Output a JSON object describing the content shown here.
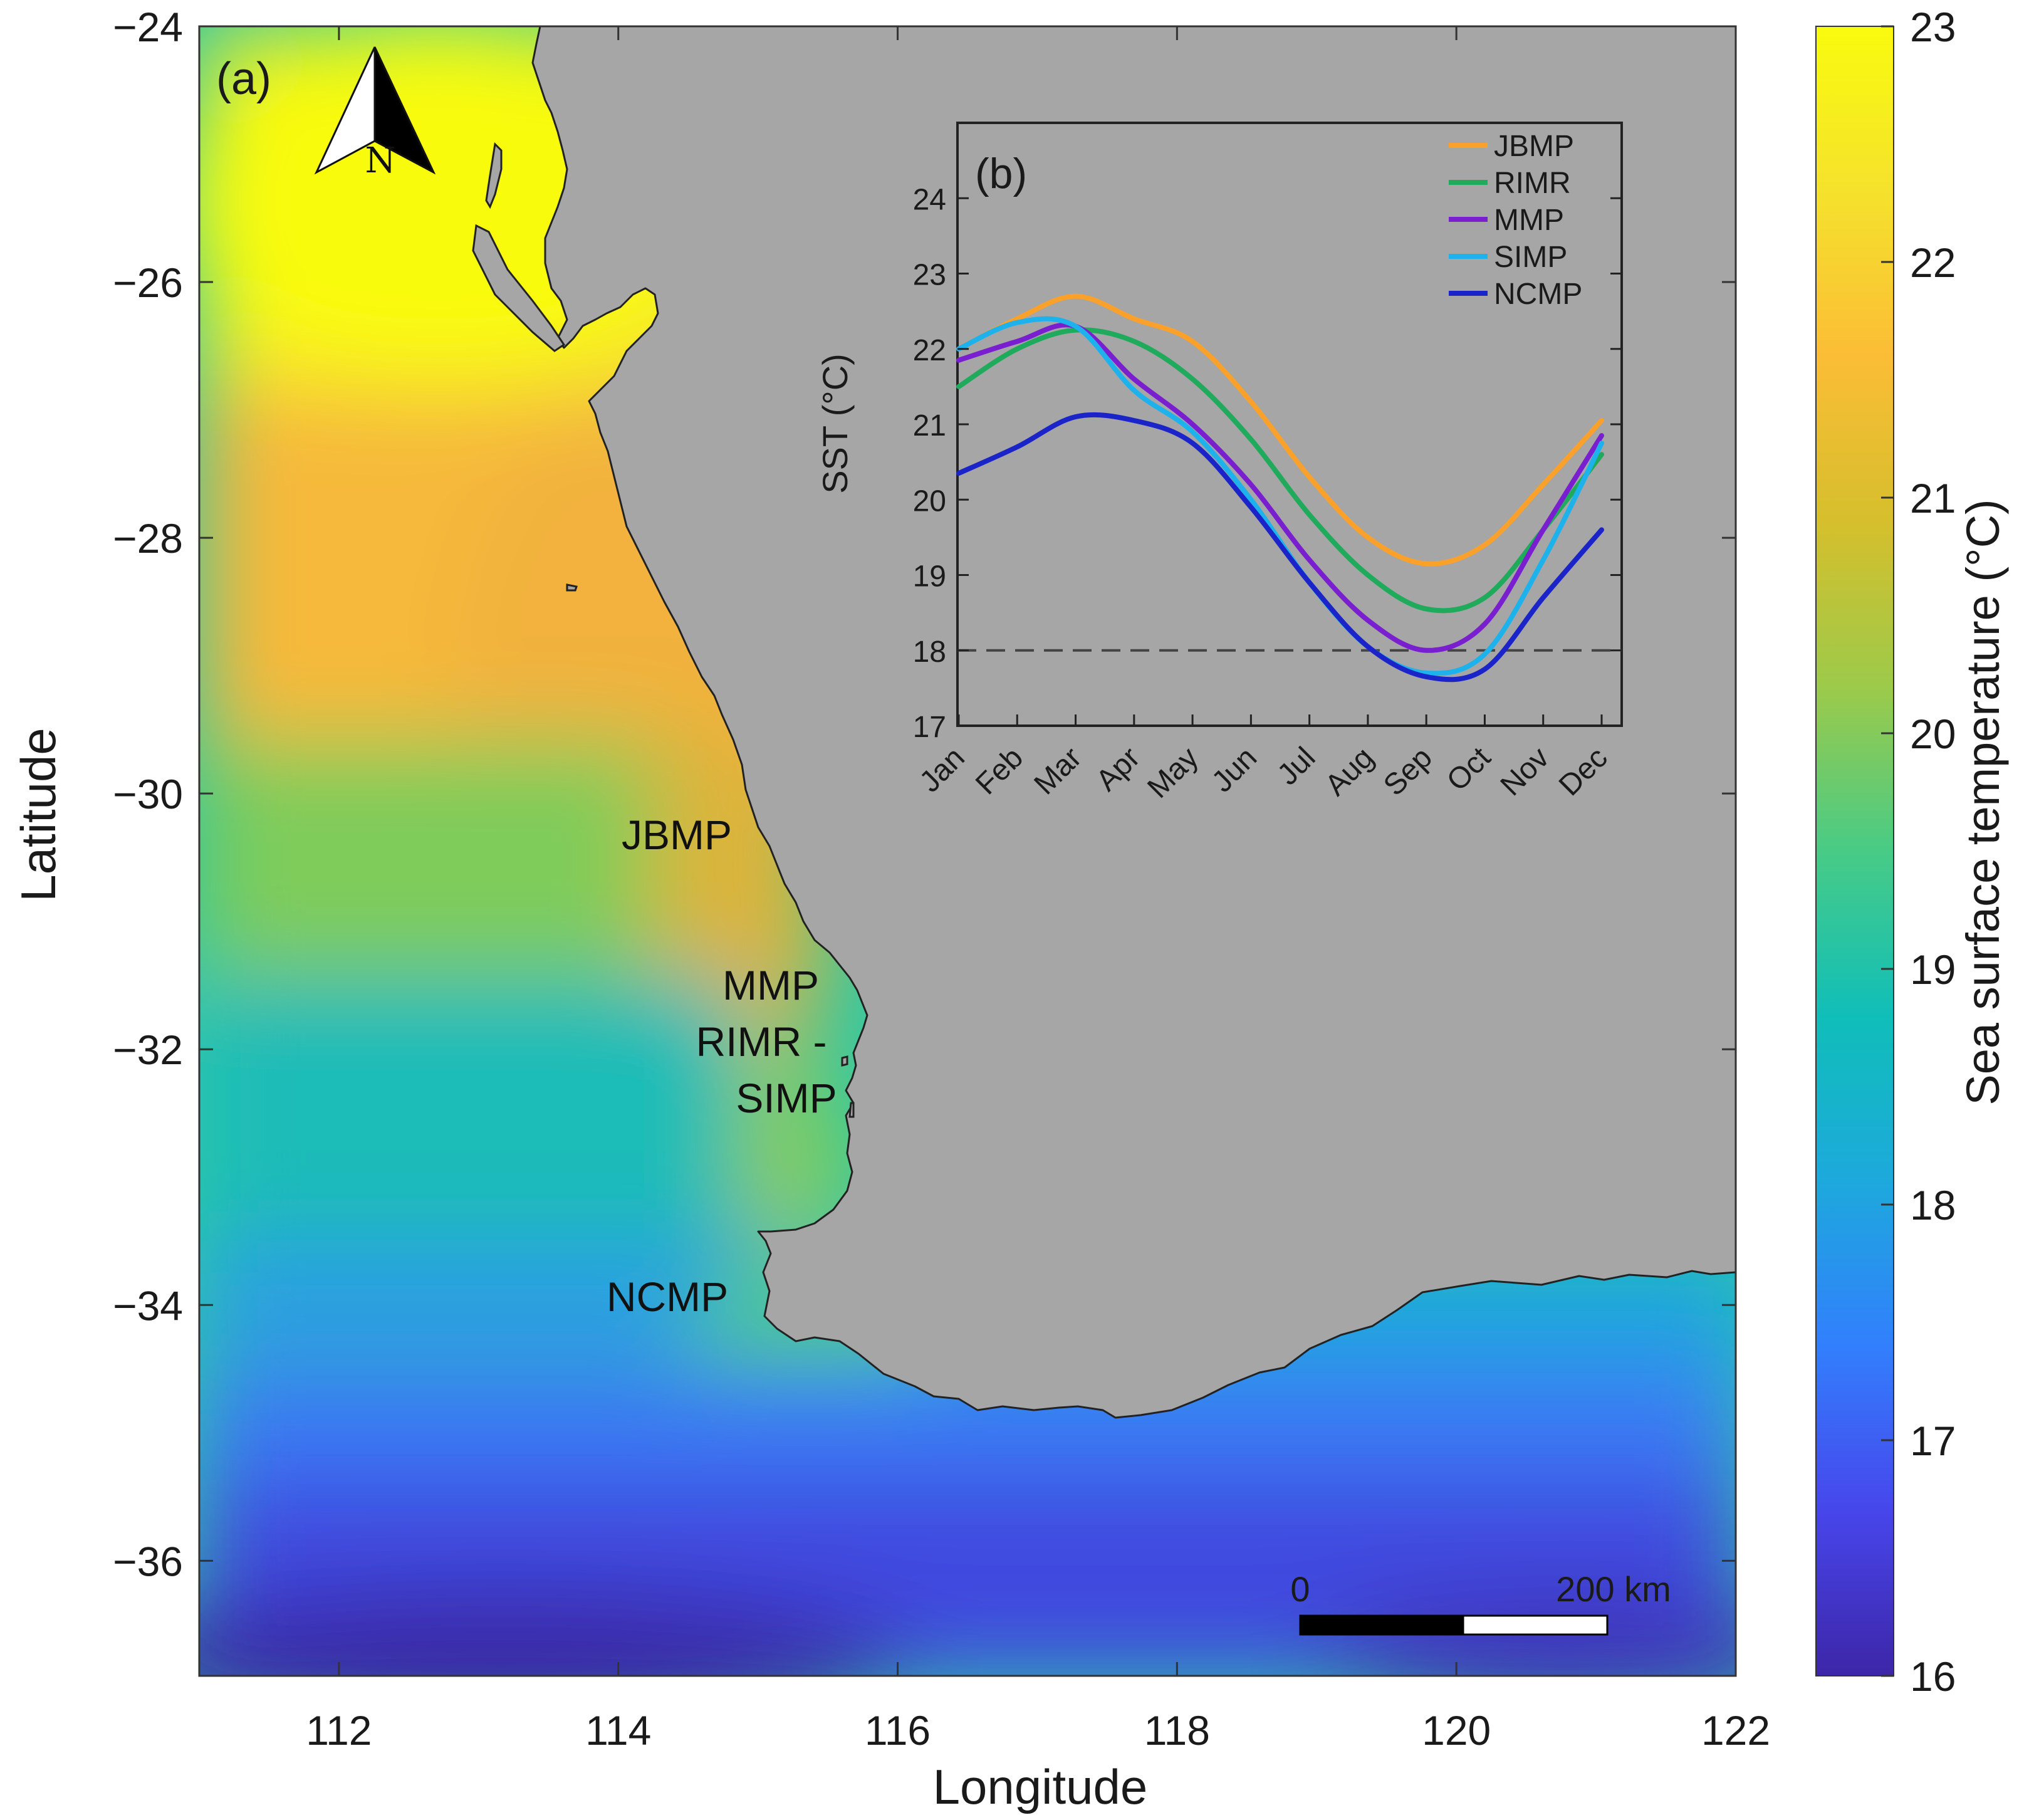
{
  "map": {
    "panel_label": "(a)",
    "x_label": "Longitude",
    "y_label": "Latitude",
    "x_ticks": [
      "112",
      "114",
      "116",
      "118",
      "120",
      "122"
    ],
    "y_ticks": [
      "−24",
      "−26",
      "−28",
      "−30",
      "−32",
      "−34",
      "−36"
    ],
    "north_arrow": {
      "letter": "N",
      "icon": "north-arrow-icon"
    },
    "scale_bar": {
      "start_label": "0",
      "end_label": "200 km"
    },
    "sites": [
      {
        "label": "JBMP",
        "lon": 114.9,
        "lat": -30.3
      },
      {
        "label": "MMP",
        "lon": 115.7,
        "lat": -31.8
      },
      {
        "label": "RIMR -",
        "lon": 115.5,
        "lat": -32.0
      },
      {
        "label": "SIMP",
        "lon": 115.7,
        "lat": -32.3
      },
      {
        "label": "NCMP",
        "lon": 115.0,
        "lat": -34.0
      }
    ],
    "colors": {
      "land": "#a6a6a6",
      "coast": "#222222"
    }
  },
  "colorbar": {
    "label": "Sea surface temperature (°C)",
    "ticks": [
      "16",
      "17",
      "18",
      "19",
      "20",
      "21",
      "22",
      "23"
    ],
    "range": [
      16,
      23
    ],
    "colormap": [
      "#3d26a8",
      "#4746eb",
      "#327ffd",
      "#1da9dc",
      "#10beb9",
      "#48cb86",
      "#9dca4a",
      "#d6bf2c",
      "#fbbd36",
      "#f5e22c",
      "#f9fb0e"
    ]
  },
  "inset": {
    "panel_label": "(b)",
    "y_label": "SST (°C)",
    "months": [
      "Jan",
      "Feb",
      "Mar",
      "Apr",
      "May",
      "Jun",
      "Jul",
      "Aug",
      "Sep",
      "Oct",
      "Nov",
      "Dec"
    ],
    "y_ticks": [
      "17",
      "18",
      "19",
      "20",
      "21",
      "22",
      "23",
      "24"
    ],
    "reference_line": 18
  },
  "chart_data": {
    "type": "line",
    "x": [
      "Jan",
      "Feb",
      "Mar",
      "Apr",
      "May",
      "Jun",
      "Jul",
      "Aug",
      "Sep",
      "Oct",
      "Nov",
      "Dec"
    ],
    "ylabel": "SST (°C)",
    "ylim": [
      17,
      25
    ],
    "grid": false,
    "legend_position": "top-right",
    "reference_line": {
      "y": 18,
      "style": "dashed"
    },
    "series": [
      {
        "name": "JBMP",
        "color": "#f9a12b",
        "values": [
          22.0,
          22.4,
          22.7,
          22.4,
          22.1,
          21.3,
          20.3,
          19.5,
          19.15,
          19.4,
          20.2,
          21.05
        ]
      },
      {
        "name": "RIMR",
        "color": "#1faa5c",
        "values": [
          21.5,
          22.0,
          22.25,
          22.1,
          21.6,
          20.8,
          19.8,
          19.0,
          18.55,
          18.7,
          19.6,
          20.6
        ]
      },
      {
        "name": "MMP",
        "color": "#7a1fcf",
        "values": [
          21.85,
          22.1,
          22.3,
          21.6,
          21.0,
          20.2,
          19.2,
          18.4,
          18.0,
          18.35,
          19.6,
          20.85
        ]
      },
      {
        "name": "SIMP",
        "color": "#1eb2ec",
        "values": [
          22.0,
          22.35,
          22.3,
          21.45,
          20.9,
          20.0,
          18.9,
          18.05,
          17.7,
          17.95,
          19.2,
          20.75
        ]
      },
      {
        "name": "NCMP",
        "color": "#1b24c8",
        "values": [
          20.35,
          20.7,
          21.1,
          21.05,
          20.75,
          19.9,
          18.9,
          18.05,
          17.65,
          17.75,
          18.7,
          19.6
        ]
      }
    ]
  }
}
